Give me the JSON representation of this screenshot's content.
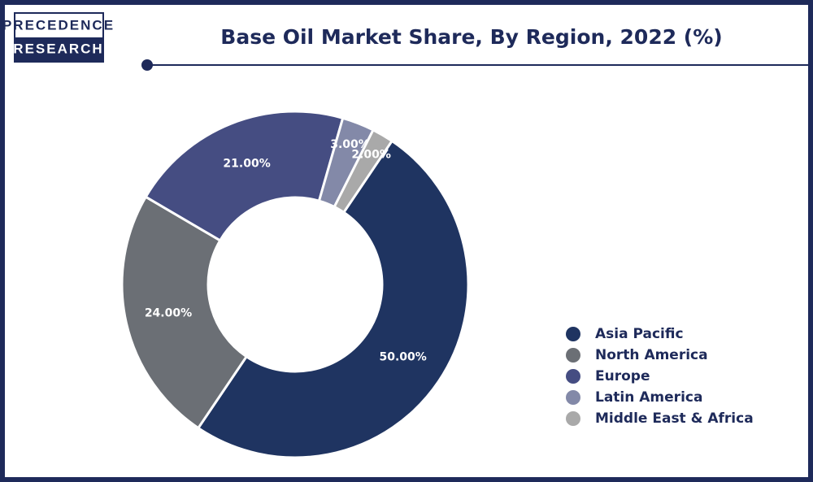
{
  "logo": {
    "line1": "PRECEDENCE",
    "line2": "RESEARCH"
  },
  "chart_data": {
    "type": "donut",
    "title": "Base Oil Market Share, By Region, 2022 (%)",
    "categories": [
      "Asia Pacific",
      "North America",
      "Europe",
      "Latin America",
      "Middle East & Africa"
    ],
    "values": [
      50,
      24,
      21,
      3,
      2
    ],
    "value_labels": [
      "50.00%",
      "24.00%",
      "21.00%",
      "3.00%",
      "2.00%"
    ],
    "colors": [
      "#1f3461",
      "#6b6f75",
      "#454d82",
      "#8389a8",
      "#a9a9a9"
    ],
    "legend": "right"
  }
}
